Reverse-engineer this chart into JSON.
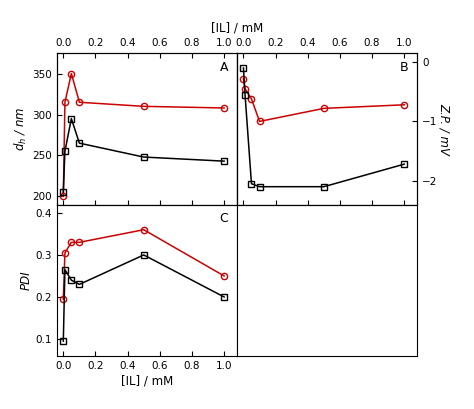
{
  "panelA": {
    "red_x": [
      0,
      0.01,
      0.05,
      0.1,
      0.5,
      1.0
    ],
    "red_y": [
      200,
      315,
      350,
      315,
      310,
      308
    ],
    "black_x": [
      0,
      0.01,
      0.05,
      0.1,
      0.5,
      1.0
    ],
    "black_y": [
      205,
      255,
      295,
      265,
      248,
      243
    ],
    "ylabel": "$d_{h}$ / nm",
    "ylim": [
      190,
      375
    ],
    "yticks": [
      200,
      250,
      300,
      350
    ],
    "label": "A"
  },
  "panelB": {
    "red_x": [
      0,
      0.01,
      0.05,
      0.1,
      0.5,
      1.0
    ],
    "red_y": [
      -0.28,
      -0.45,
      -0.62,
      -1.0,
      -0.78,
      -0.72
    ],
    "black_x": [
      0,
      0.01,
      0.05,
      0.1,
      0.5,
      1.0
    ],
    "black_y": [
      -0.1,
      -0.55,
      -2.05,
      -2.1,
      -2.1,
      -1.72
    ],
    "ylabel": "Z.P. / mV",
    "ylim": [
      -2.4,
      0.15
    ],
    "yticks": [
      0,
      -1,
      -2
    ],
    "label": "B"
  },
  "panelC": {
    "red_x": [
      0,
      0.01,
      0.05,
      0.1,
      0.5,
      1.0
    ],
    "red_y": [
      0.195,
      0.305,
      0.33,
      0.33,
      0.36,
      0.25
    ],
    "black_x": [
      0,
      0.01,
      0.05,
      0.1,
      0.5,
      1.0
    ],
    "black_y": [
      0.095,
      0.265,
      0.24,
      0.23,
      0.3,
      0.2
    ],
    "ylabel": "PDI",
    "ylim": [
      0.06,
      0.42
    ],
    "yticks": [
      0.1,
      0.2,
      0.3,
      0.4
    ],
    "label": "C"
  },
  "top_xlabel": "[IL] / mM",
  "bottom_xlabel": "[IL] / mM",
  "xticks": [
    0.0,
    0.2,
    0.4,
    0.6,
    0.8,
    1.0
  ],
  "xticklabels": [
    "0.0",
    "0.2",
    "0.4",
    "0.6",
    "0.8",
    "1.0"
  ],
  "red_color": "#cc0000",
  "black_color": "#000000",
  "marker_red": "o",
  "marker_black": "s",
  "markersize": 4.5,
  "linewidth": 1.1,
  "fig_width": 4.74,
  "fig_height": 4.09
}
